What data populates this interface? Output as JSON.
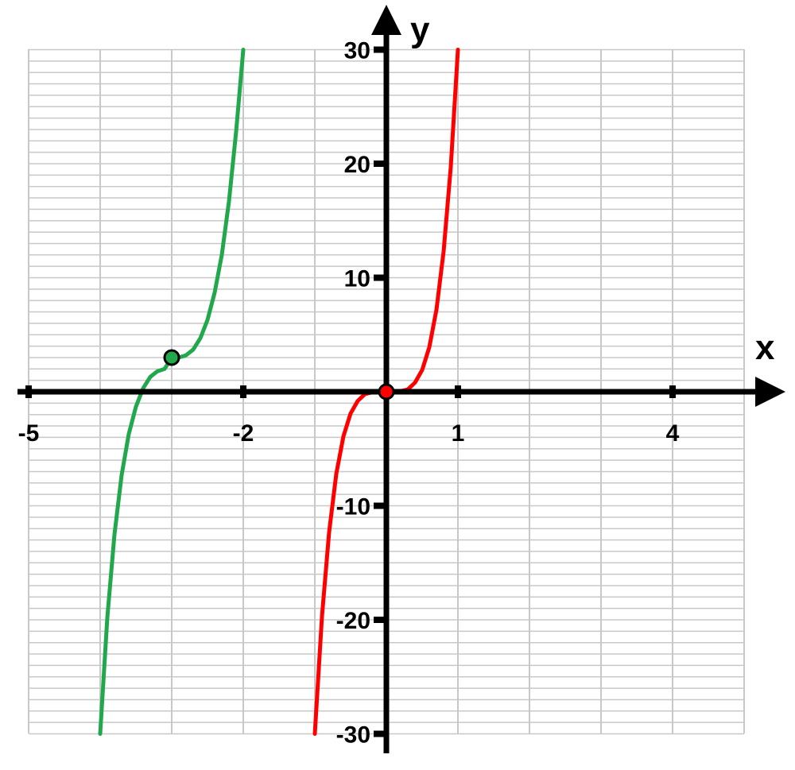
{
  "chart_data": {
    "type": "line",
    "title": "",
    "xlabel": "x",
    "ylabel": "y",
    "xlim": [
      -5,
      5
    ],
    "ylim": [
      -30,
      30
    ],
    "grid": true,
    "x_tick_labels": [
      {
        "value": -5,
        "label": "-5"
      },
      {
        "value": -2,
        "label": "-2"
      },
      {
        "value": 1,
        "label": "1"
      },
      {
        "value": 4,
        "label": "4"
      }
    ],
    "y_tick_labels": [
      {
        "value": 30,
        "label": "30"
      },
      {
        "value": 20,
        "label": "20"
      },
      {
        "value": 10,
        "label": "10"
      },
      {
        "value": -10,
        "label": "-10"
      },
      {
        "value": -20,
        "label": "-20"
      },
      {
        "value": -30,
        "label": "-30"
      }
    ],
    "series": [
      {
        "color": "#21a84c",
        "points": [
          [
            -4.0,
            -30
          ],
          [
            -3.9,
            -19.8
          ],
          [
            -3.8,
            -12.5
          ],
          [
            -3.7,
            -7.3
          ],
          [
            -3.6,
            -3.7
          ],
          [
            -3.5,
            -1.3
          ],
          [
            -3.4,
            0.3
          ],
          [
            -3.3,
            1.3
          ],
          [
            -3.2,
            1.8
          ],
          [
            -3.1,
            2.0
          ],
          [
            -3.0,
            3.0
          ],
          [
            -2.9,
            3.0
          ],
          [
            -2.8,
            3.2
          ],
          [
            -2.7,
            3.7
          ],
          [
            -2.6,
            4.7
          ],
          [
            -2.5,
            6.3
          ],
          [
            -2.4,
            8.7
          ],
          [
            -2.3,
            12.0
          ],
          [
            -2.2,
            16.7
          ],
          [
            -2.1,
            22.8
          ],
          [
            -2.0,
            30
          ]
        ],
        "marked_point": [
          -3.0,
          3.0
        ]
      },
      {
        "color": "#ff0000",
        "points": [
          [
            -1.0,
            -30
          ],
          [
            -0.9,
            -19.7
          ],
          [
            -0.8,
            -12.3
          ],
          [
            -0.7,
            -7.2
          ],
          [
            -0.6,
            -3.9
          ],
          [
            -0.5,
            -1.9
          ],
          [
            -0.4,
            -0.8
          ],
          [
            -0.3,
            -0.2
          ],
          [
            -0.2,
            -0.05
          ],
          [
            -0.1,
            0
          ],
          [
            0.0,
            0
          ],
          [
            0.1,
            0
          ],
          [
            0.2,
            0.05
          ],
          [
            0.3,
            0.2
          ],
          [
            0.4,
            0.8
          ],
          [
            0.5,
            1.9
          ],
          [
            0.6,
            3.9
          ],
          [
            0.7,
            7.2
          ],
          [
            0.8,
            12.3
          ],
          [
            0.9,
            19.7
          ],
          [
            1.0,
            30
          ]
        ],
        "marked_point": [
          0.0,
          0.0
        ]
      }
    ]
  }
}
